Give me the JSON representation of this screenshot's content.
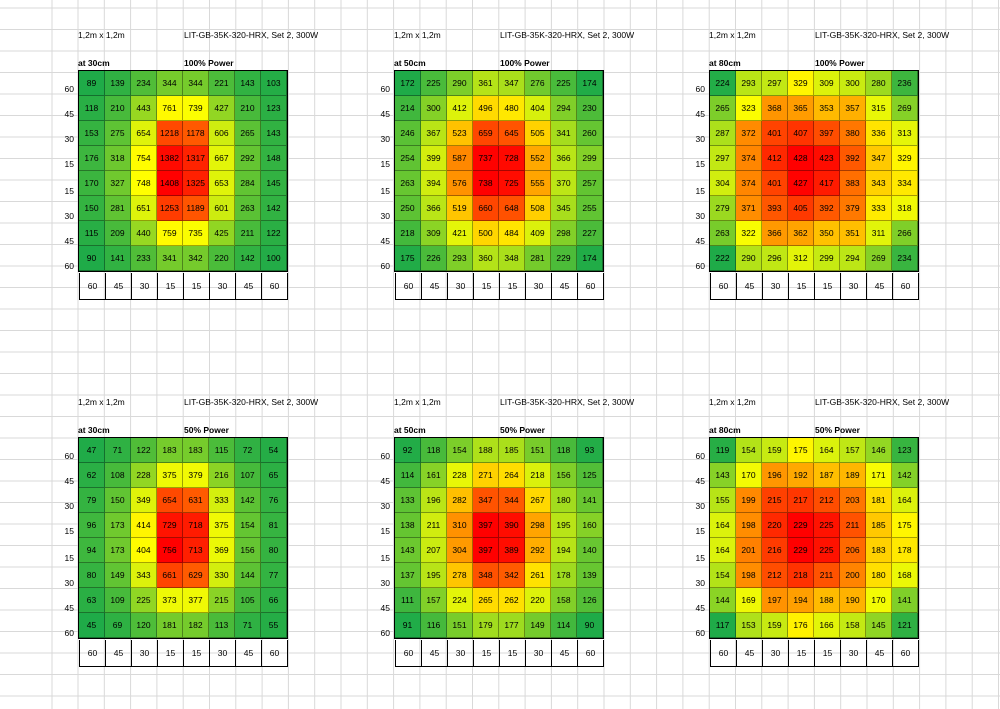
{
  "chart_data": [
    {
      "type": "heatmap",
      "area": "1,2m x 1,2m",
      "title": "LIT-GB-35K-320-HRX, Set 2, 300W",
      "distance": "at 30cm",
      "power": "100% Power",
      "x_labels": [
        "60",
        "45",
        "30",
        "15",
        "15",
        "30",
        "45",
        "60"
      ],
      "y_labels": [
        "60",
        "45",
        "30",
        "15",
        "15",
        "30",
        "45",
        "60"
      ],
      "values": [
        [
          89,
          139,
          234,
          344,
          344,
          221,
          143,
          103
        ],
        [
          118,
          210,
          443,
          761,
          739,
          427,
          210,
          123
        ],
        [
          153,
          275,
          654,
          1218,
          1178,
          606,
          265,
          143
        ],
        [
          176,
          318,
          754,
          1382,
          1317,
          667,
          292,
          148
        ],
        [
          170,
          327,
          748,
          1408,
          1325,
          653,
          284,
          145
        ],
        [
          150,
          281,
          651,
          1253,
          1189,
          601,
          263,
          142
        ],
        [
          115,
          209,
          440,
          759,
          735,
          425,
          211,
          122
        ],
        [
          90,
          141,
          233,
          341,
          342,
          220,
          142,
          100
        ]
      ]
    },
    {
      "type": "heatmap",
      "area": "1,2m x 1,2m",
      "title": "LIT-GB-35K-320-HRX, Set 2, 300W",
      "distance": "at 50cm",
      "power": "100% Power",
      "x_labels": [
        "60",
        "45",
        "30",
        "15",
        "15",
        "30",
        "45",
        "60"
      ],
      "y_labels": [
        "60",
        "45",
        "30",
        "15",
        "15",
        "30",
        "45",
        "60"
      ],
      "values": [
        [
          172,
          225,
          290,
          361,
          347,
          276,
          225,
          174
        ],
        [
          214,
          300,
          412,
          496,
          480,
          404,
          294,
          230
        ],
        [
          246,
          367,
          523,
          659,
          645,
          505,
          341,
          260
        ],
        [
          254,
          399,
          587,
          737,
          728,
          552,
          366,
          299
        ],
        [
          263,
          394,
          576,
          738,
          725,
          555,
          370,
          257
        ],
        [
          250,
          366,
          519,
          660,
          648,
          508,
          345,
          255
        ],
        [
          218,
          309,
          421,
          500,
          484,
          409,
          298,
          227
        ],
        [
          175,
          226,
          293,
          360,
          348,
          281,
          229,
          174
        ]
      ]
    },
    {
      "type": "heatmap",
      "area": "1,2m x 1,2m",
      "title": "LIT-GB-35K-320-HRX, Set 2, 300W",
      "distance": "at 80cm",
      "power": "100% Power",
      "x_labels": [
        "60",
        "45",
        "30",
        "15",
        "15",
        "30",
        "45",
        "60"
      ],
      "y_labels": [
        "60",
        "45",
        "30",
        "15",
        "15",
        "30",
        "45",
        "60"
      ],
      "values": [
        [
          224,
          293,
          297,
          329,
          309,
          300,
          280,
          236
        ],
        [
          265,
          323,
          368,
          365,
          353,
          357,
          315,
          269
        ],
        [
          287,
          372,
          401,
          407,
          397,
          380,
          336,
          313
        ],
        [
          297,
          374,
          412,
          428,
          423,
          392,
          347,
          329
        ],
        [
          304,
          374,
          401,
          427,
          417,
          383,
          343,
          334
        ],
        [
          279,
          371,
          393,
          405,
          392,
          379,
          333,
          318
        ],
        [
          263,
          322,
          366,
          362,
          350,
          351,
          311,
          266
        ],
        [
          222,
          290,
          296,
          312,
          299,
          294,
          269,
          234
        ]
      ]
    },
    {
      "type": "heatmap",
      "area": "1,2m x 1,2m",
      "title": "LIT-GB-35K-320-HRX, Set 2, 300W",
      "distance": "at 30cm",
      "power": "50% Power",
      "x_labels": [
        "60",
        "45",
        "30",
        "15",
        "15",
        "30",
        "45",
        "60"
      ],
      "y_labels": [
        "60",
        "45",
        "30",
        "15",
        "15",
        "30",
        "45",
        "60"
      ],
      "values": [
        [
          47,
          71,
          122,
          183,
          183,
          115,
          72,
          54
        ],
        [
          62,
          108,
          228,
          375,
          379,
          216,
          107,
          65
        ],
        [
          79,
          150,
          349,
          654,
          631,
          333,
          142,
          76
        ],
        [
          96,
          173,
          414,
          729,
          718,
          375,
          154,
          81
        ],
        [
          94,
          173,
          404,
          756,
          713,
          369,
          156,
          80
        ],
        [
          80,
          149,
          343,
          661,
          629,
          330,
          144,
          77
        ],
        [
          63,
          109,
          225,
          373,
          377,
          215,
          105,
          66
        ],
        [
          45,
          69,
          120,
          181,
          182,
          113,
          71,
          55
        ]
      ]
    },
    {
      "type": "heatmap",
      "area": "1,2m x 1,2m",
      "title": "LIT-GB-35K-320-HRX, Set 2, 300W",
      "distance": "at 50cm",
      "power": "50% Power",
      "x_labels": [
        "60",
        "45",
        "30",
        "15",
        "15",
        "30",
        "45",
        "60"
      ],
      "y_labels": [
        "60",
        "45",
        "30",
        "15",
        "15",
        "30",
        "45",
        "60"
      ],
      "values": [
        [
          92,
          118,
          154,
          188,
          185,
          151,
          118,
          93
        ],
        [
          114,
          161,
          228,
          271,
          264,
          218,
          156,
          125
        ],
        [
          133,
          196,
          282,
          347,
          344,
          267,
          180,
          141
        ],
        [
          138,
          211,
          310,
          397,
          390,
          298,
          195,
          160
        ],
        [
          143,
          207,
          304,
          397,
          389,
          292,
          194,
          140
        ],
        [
          137,
          195,
          278,
          348,
          342,
          261,
          178,
          139
        ],
        [
          111,
          157,
          224,
          265,
          262,
          220,
          158,
          126
        ],
        [
          91,
          116,
          151,
          179,
          177,
          149,
          114,
          90
        ]
      ]
    },
    {
      "type": "heatmap",
      "area": "1,2m x 1,2m",
      "title": "LIT-GB-35K-320-HRX, Set 2, 300W",
      "distance": "at 80cm",
      "power": "50% Power",
      "x_labels": [
        "60",
        "45",
        "30",
        "15",
        "15",
        "30",
        "45",
        "60"
      ],
      "y_labels": [
        "60",
        "45",
        "30",
        "15",
        "15",
        "30",
        "45",
        "60"
      ],
      "values": [
        [
          119,
          154,
          159,
          175,
          164,
          157,
          146,
          123
        ],
        [
          143,
          170,
          196,
          192,
          187,
          189,
          171,
          142
        ],
        [
          155,
          199,
          215,
          217,
          212,
          203,
          181,
          164
        ],
        [
          164,
          198,
          220,
          229,
          225,
          211,
          185,
          175
        ],
        [
          164,
          201,
          216,
          229,
          225,
          206,
          183,
          178
        ],
        [
          154,
          198,
          212,
          218,
          211,
          200,
          180,
          168
        ],
        [
          144,
          169,
          197,
          194,
          188,
          190,
          170,
          141
        ],
        [
          117,
          153,
          159,
          176,
          166,
          158,
          145,
          121
        ]
      ]
    }
  ],
  "colors": {
    "low": "#1fab48",
    "mid": "#ffff00",
    "high": "#ff0000",
    "gridline": "#d9d9d9"
  }
}
